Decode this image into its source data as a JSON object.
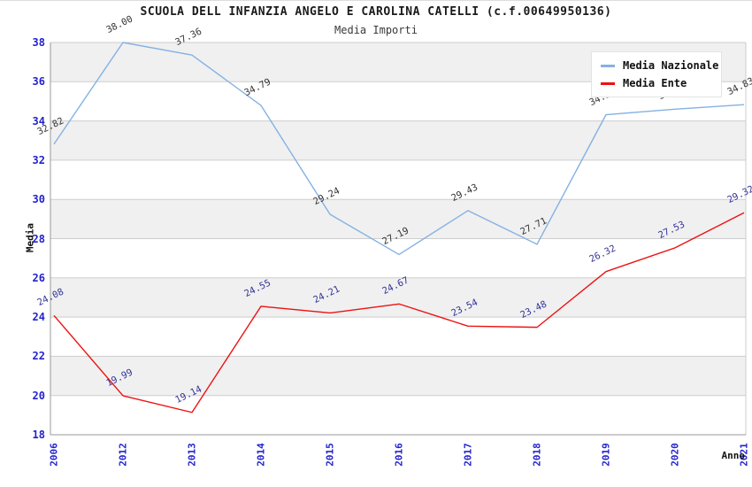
{
  "page": {
    "title": "SCUOLA DELL INFANZIA ANGELO E CAROLINA CATELLI (c.f.00649950136)",
    "subtitle": "Media Importi"
  },
  "chart_data": {
    "type": "line",
    "title": "SCUOLA DELL INFANZIA ANGELO E CAROLINA CATELLI (c.f.00649950136)",
    "subtitle": "Media Importi",
    "xlabel": "Anno",
    "ylabel": "Media",
    "ylim": [
      18,
      38
    ],
    "yticks": [
      18,
      20,
      22,
      24,
      26,
      28,
      30,
      32,
      34,
      36,
      38
    ],
    "grid": "horizontal-bands-alternating",
    "legend_position": "top-right",
    "categories": [
      "2006",
      "2012",
      "2013",
      "2014",
      "2015",
      "2016",
      "2017",
      "2018",
      "2019",
      "2020",
      "2021"
    ],
    "series": [
      {
        "name": "Media Nazionale",
        "color": "#85b1e3",
        "label_color": "#333333",
        "values": [
          32.82,
          38.0,
          37.36,
          34.79,
          29.24,
          27.19,
          29.43,
          27.71,
          34.32,
          34.6,
          34.83
        ]
      },
      {
        "name": "Media Ente",
        "color": "#ed1111",
        "label_color": "#333399",
        "values": [
          24.08,
          19.99,
          19.14,
          24.55,
          24.21,
          24.67,
          23.54,
          23.48,
          26.32,
          27.53,
          29.32
        ]
      }
    ]
  },
  "colors": {
    "tick_label": "#2323cd",
    "band_gray": "#f0f0f0",
    "band_white": "#ffffff",
    "gridline": "#cdcdcd",
    "axis": "#999999",
    "plot_border_light": "#cccccc",
    "legend_bg": "#ffffff"
  }
}
